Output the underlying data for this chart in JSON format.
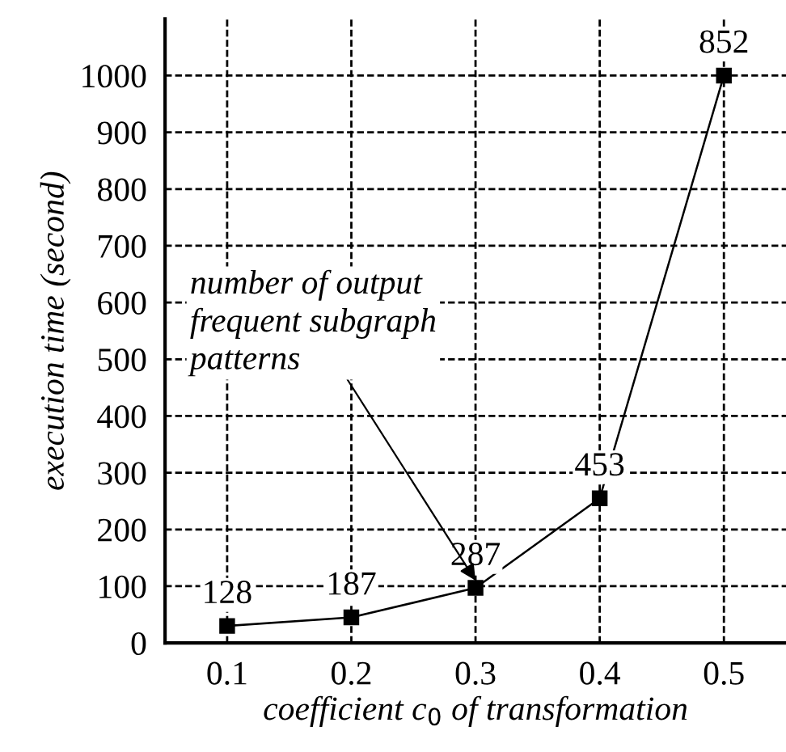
{
  "chart_data": {
    "type": "line",
    "xlabel": "coefficient c$_{0}$ of transformation",
    "ylabel": "execution time (second)",
    "x": [
      0.1,
      0.2,
      0.3,
      0.4,
      0.5
    ],
    "series": [
      {
        "color": "#000000",
        "values": [
          30,
          45,
          97,
          255,
          1000
        ]
      }
    ],
    "xlim": [
      0.05,
      0.55
    ],
    "xticks": [
      0.1,
      0.2,
      0.3,
      0.4,
      0.5
    ],
    "ylim": [
      0,
      1100
    ],
    "yticks": [
      0,
      100,
      200,
      300,
      400,
      500,
      600,
      700,
      800,
      900,
      1000
    ],
    "grid": true,
    "marker": "square",
    "line_style": "solid",
    "legend": false,
    "annotations": [
      {
        "text": "128",
        "x": 0.1,
        "y": 30
      },
      {
        "text": "187",
        "x": 0.2,
        "y": 45
      },
      {
        "text": "287",
        "x": 0.3,
        "y": 97
      },
      {
        "text": "453",
        "x": 0.4,
        "y": 255
      },
      {
        "text": "852",
        "x": 0.5,
        "y": 1000
      },
      {
        "text": "number of output\nfrequent subgraph\npatterns",
        "x": 0.3,
        "y": 110
      }
    ]
  }
}
